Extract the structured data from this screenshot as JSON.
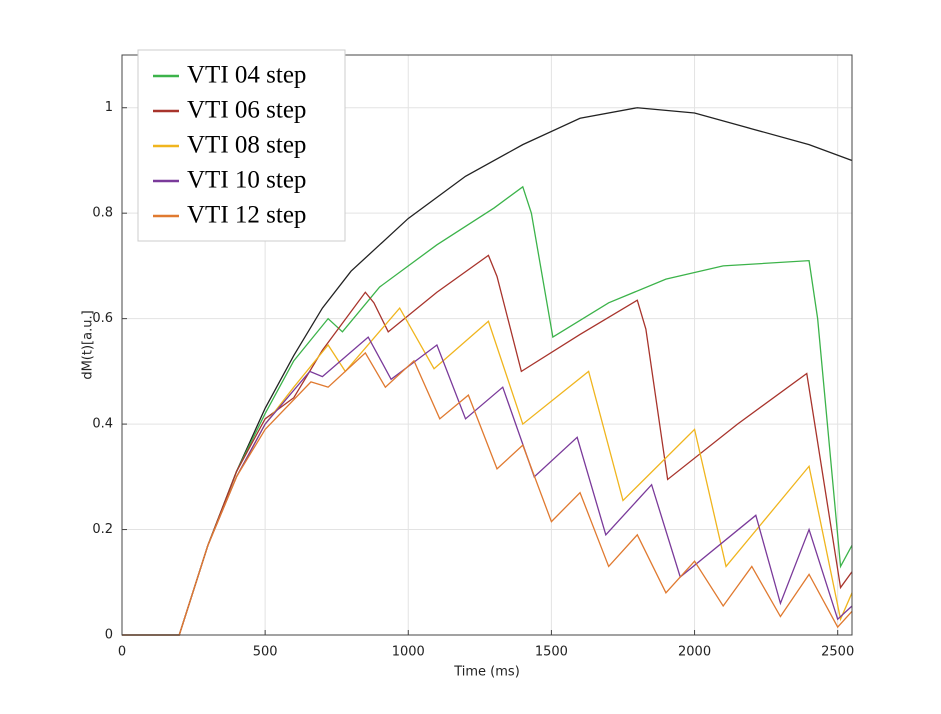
{
  "chart_data": {
    "type": "line",
    "x_label": "Time (ms)",
    "y_label": "dM(t)[a.u.]",
    "xlim": [
      0,
      2550
    ],
    "ylim": [
      0,
      1.1
    ],
    "xticks": [
      0,
      500,
      1000,
      1500,
      2000,
      2500
    ],
    "yticks": [
      0,
      0.2,
      0.4,
      0.6,
      0.8,
      1
    ],
    "grid": true,
    "legend": "upper-left",
    "series": [
      {
        "color": "#222222",
        "x": [
          0,
          100,
          200,
          300,
          400,
          500,
          600,
          700,
          800,
          900,
          1000,
          1200,
          1400,
          1600,
          1800,
          2000,
          2200,
          2400,
          2550
        ],
        "values": [
          0,
          0,
          0,
          0.17,
          0.31,
          0.43,
          0.53,
          0.62,
          0.69,
          0.74,
          0.79,
          0.87,
          0.93,
          0.98,
          1.0,
          0.99,
          0.96,
          0.93,
          0.9
        ]
      },
      {
        "name": "VTI 04 step",
        "color": "#3cb34a",
        "x": [
          0,
          200,
          300,
          400,
          500,
          600,
          720,
          770,
          900,
          1100,
          1300,
          1400,
          1430,
          1505,
          1700,
          1900,
          2100,
          2400,
          2430,
          2510,
          2550
        ],
        "values": [
          0,
          0,
          0.17,
          0.31,
          0.42,
          0.52,
          0.6,
          0.575,
          0.66,
          0.74,
          0.81,
          0.85,
          0.8,
          0.565,
          0.63,
          0.675,
          0.7,
          0.71,
          0.6,
          0.13,
          0.17
        ]
      },
      {
        "name": "VTI 06 step",
        "color": "#a8342c",
        "x": [
          0,
          200,
          300,
          400,
          500,
          600,
          700,
          850,
          880,
          930,
          1100,
          1280,
          1310,
          1395,
          1600,
          1800,
          1830,
          1906,
          2150,
          2392,
          2420,
          2510,
          2550
        ],
        "values": [
          0,
          0,
          0.17,
          0.31,
          0.41,
          0.45,
          0.54,
          0.65,
          0.63,
          0.575,
          0.65,
          0.72,
          0.68,
          0.5,
          0.57,
          0.635,
          0.58,
          0.295,
          0.4,
          0.496,
          0.4,
          0.09,
          0.12
        ]
      },
      {
        "name": "VTI 08 step",
        "color": "#f0b51e",
        "x": [
          0,
          200,
          300,
          400,
          500,
          600,
          720,
          780,
          970,
          1090,
          1280,
          1400,
          1630,
          1750,
          2000,
          2110,
          2400,
          2510,
          2550
        ],
        "values": [
          0,
          0,
          0.17,
          0.3,
          0.4,
          0.47,
          0.55,
          0.5,
          0.62,
          0.505,
          0.595,
          0.4,
          0.5,
          0.255,
          0.39,
          0.13,
          0.32,
          0.03,
          0.08
        ]
      },
      {
        "name": "VTI 10 step",
        "color": "#7a3a9a",
        "x": [
          0,
          200,
          300,
          400,
          500,
          656,
          700,
          860,
          940,
          1100,
          1200,
          1330,
          1440,
          1590,
          1690,
          1850,
          1950,
          2214,
          2300,
          2400,
          2500,
          2550
        ],
        "values": [
          0,
          0,
          0.17,
          0.3,
          0.4,
          0.5,
          0.49,
          0.565,
          0.485,
          0.55,
          0.41,
          0.47,
          0.3,
          0.375,
          0.19,
          0.285,
          0.11,
          0.227,
          0.06,
          0.2,
          0.03,
          0.055
        ]
      },
      {
        "name": "VTI 12 step",
        "color": "#e07a30",
        "x": [
          0,
          200,
          300,
          400,
          500,
          660,
          720,
          850,
          920,
          1020,
          1110,
          1210,
          1310,
          1400,
          1500,
          1600,
          1700,
          1800,
          1900,
          2000,
          2100,
          2200,
          2300,
          2400,
          2500,
          2550
        ],
        "values": [
          0,
          0,
          0.17,
          0.3,
          0.39,
          0.48,
          0.47,
          0.535,
          0.47,
          0.52,
          0.41,
          0.455,
          0.315,
          0.36,
          0.215,
          0.27,
          0.13,
          0.19,
          0.08,
          0.14,
          0.055,
          0.13,
          0.035,
          0.115,
          0.015,
          0.045
        ]
      }
    ]
  }
}
